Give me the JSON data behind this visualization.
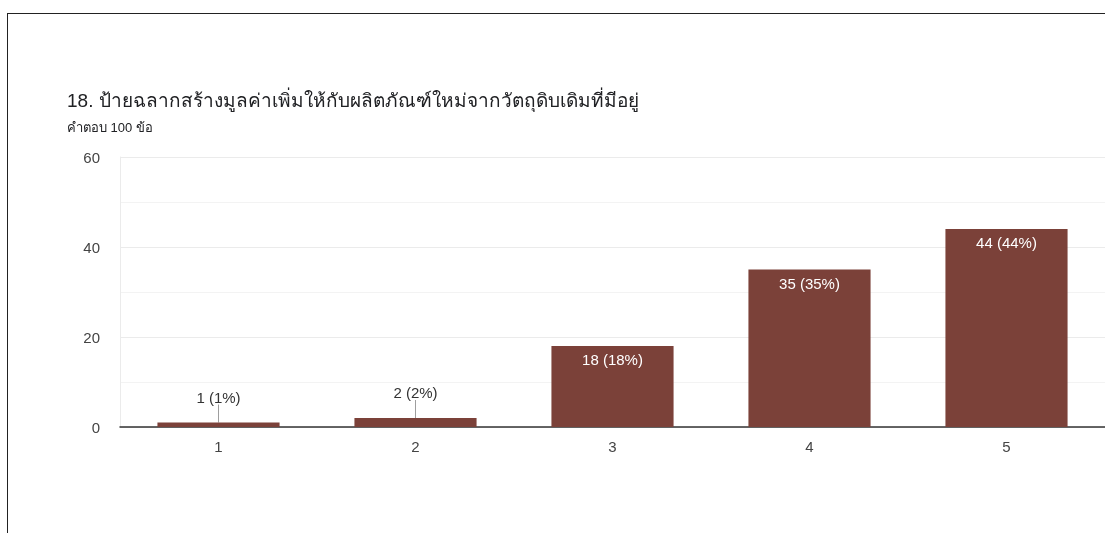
{
  "chart_data": {
    "type": "bar",
    "title": "18. ป้ายฉลากสร้างมูลค่าเพิ่มให้กับผลิตภัณฑ์ใหม่จากวัตถุดิบเดิมที่มีอยู่",
    "subtitle": "คำตอบ 100 ข้อ",
    "categories": [
      "1",
      "2",
      "3",
      "4",
      "5"
    ],
    "values": [
      1,
      2,
      18,
      35,
      44
    ],
    "color": "#7b4139",
    "value_labels": [
      "1 (1%)",
      "2 (2%)",
      "18 (18%)",
      "35 (35%)",
      "44 (44%)"
    ],
    "ylim": [
      0,
      60
    ],
    "yticks": [
      0,
      {
        "value": 10,
        "label": null
      },
      20,
      {
        "value": 30,
        "label": null
      },
      40,
      {
        "value": 50,
        "label": null
      },
      60
    ],
    "grid": "y"
  }
}
